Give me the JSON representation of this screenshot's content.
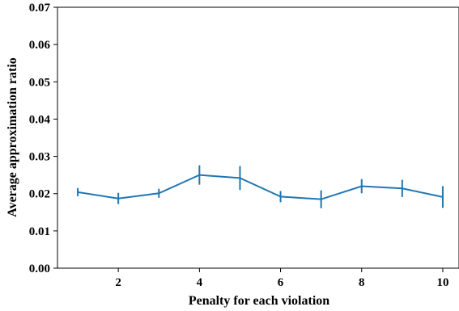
{
  "chart_data": {
    "type": "line",
    "xlabel": "Penalty for each violation",
    "ylabel": "Average approximation ratio",
    "xlim": [
      0.5,
      10.4
    ],
    "ylim": [
      0,
      0.07
    ],
    "xticks": [
      2,
      4,
      6,
      8,
      10
    ],
    "yticks": [
      0.0,
      0.01,
      0.02,
      0.03,
      0.04,
      0.05,
      0.06,
      0.07
    ],
    "ytick_labels": [
      "0.00",
      "0.01",
      "0.02",
      "0.03",
      "0.04",
      "0.05",
      "0.06",
      "0.07"
    ],
    "xtick_labels": [
      "2",
      "4",
      "6",
      "8",
      "10"
    ],
    "grid": false,
    "series": [
      {
        "color": "#1f77b4",
        "x": [
          1,
          2,
          3,
          4,
          5,
          6,
          7,
          8,
          9,
          10
        ],
        "y": [
          0.0204,
          0.0187,
          0.0201,
          0.025,
          0.0242,
          0.0192,
          0.0185,
          0.022,
          0.0214,
          0.0191
        ],
        "err": [
          0.0011,
          0.0015,
          0.0012,
          0.0026,
          0.0032,
          0.0015,
          0.0024,
          0.0019,
          0.0023,
          0.0029
        ]
      }
    ]
  }
}
